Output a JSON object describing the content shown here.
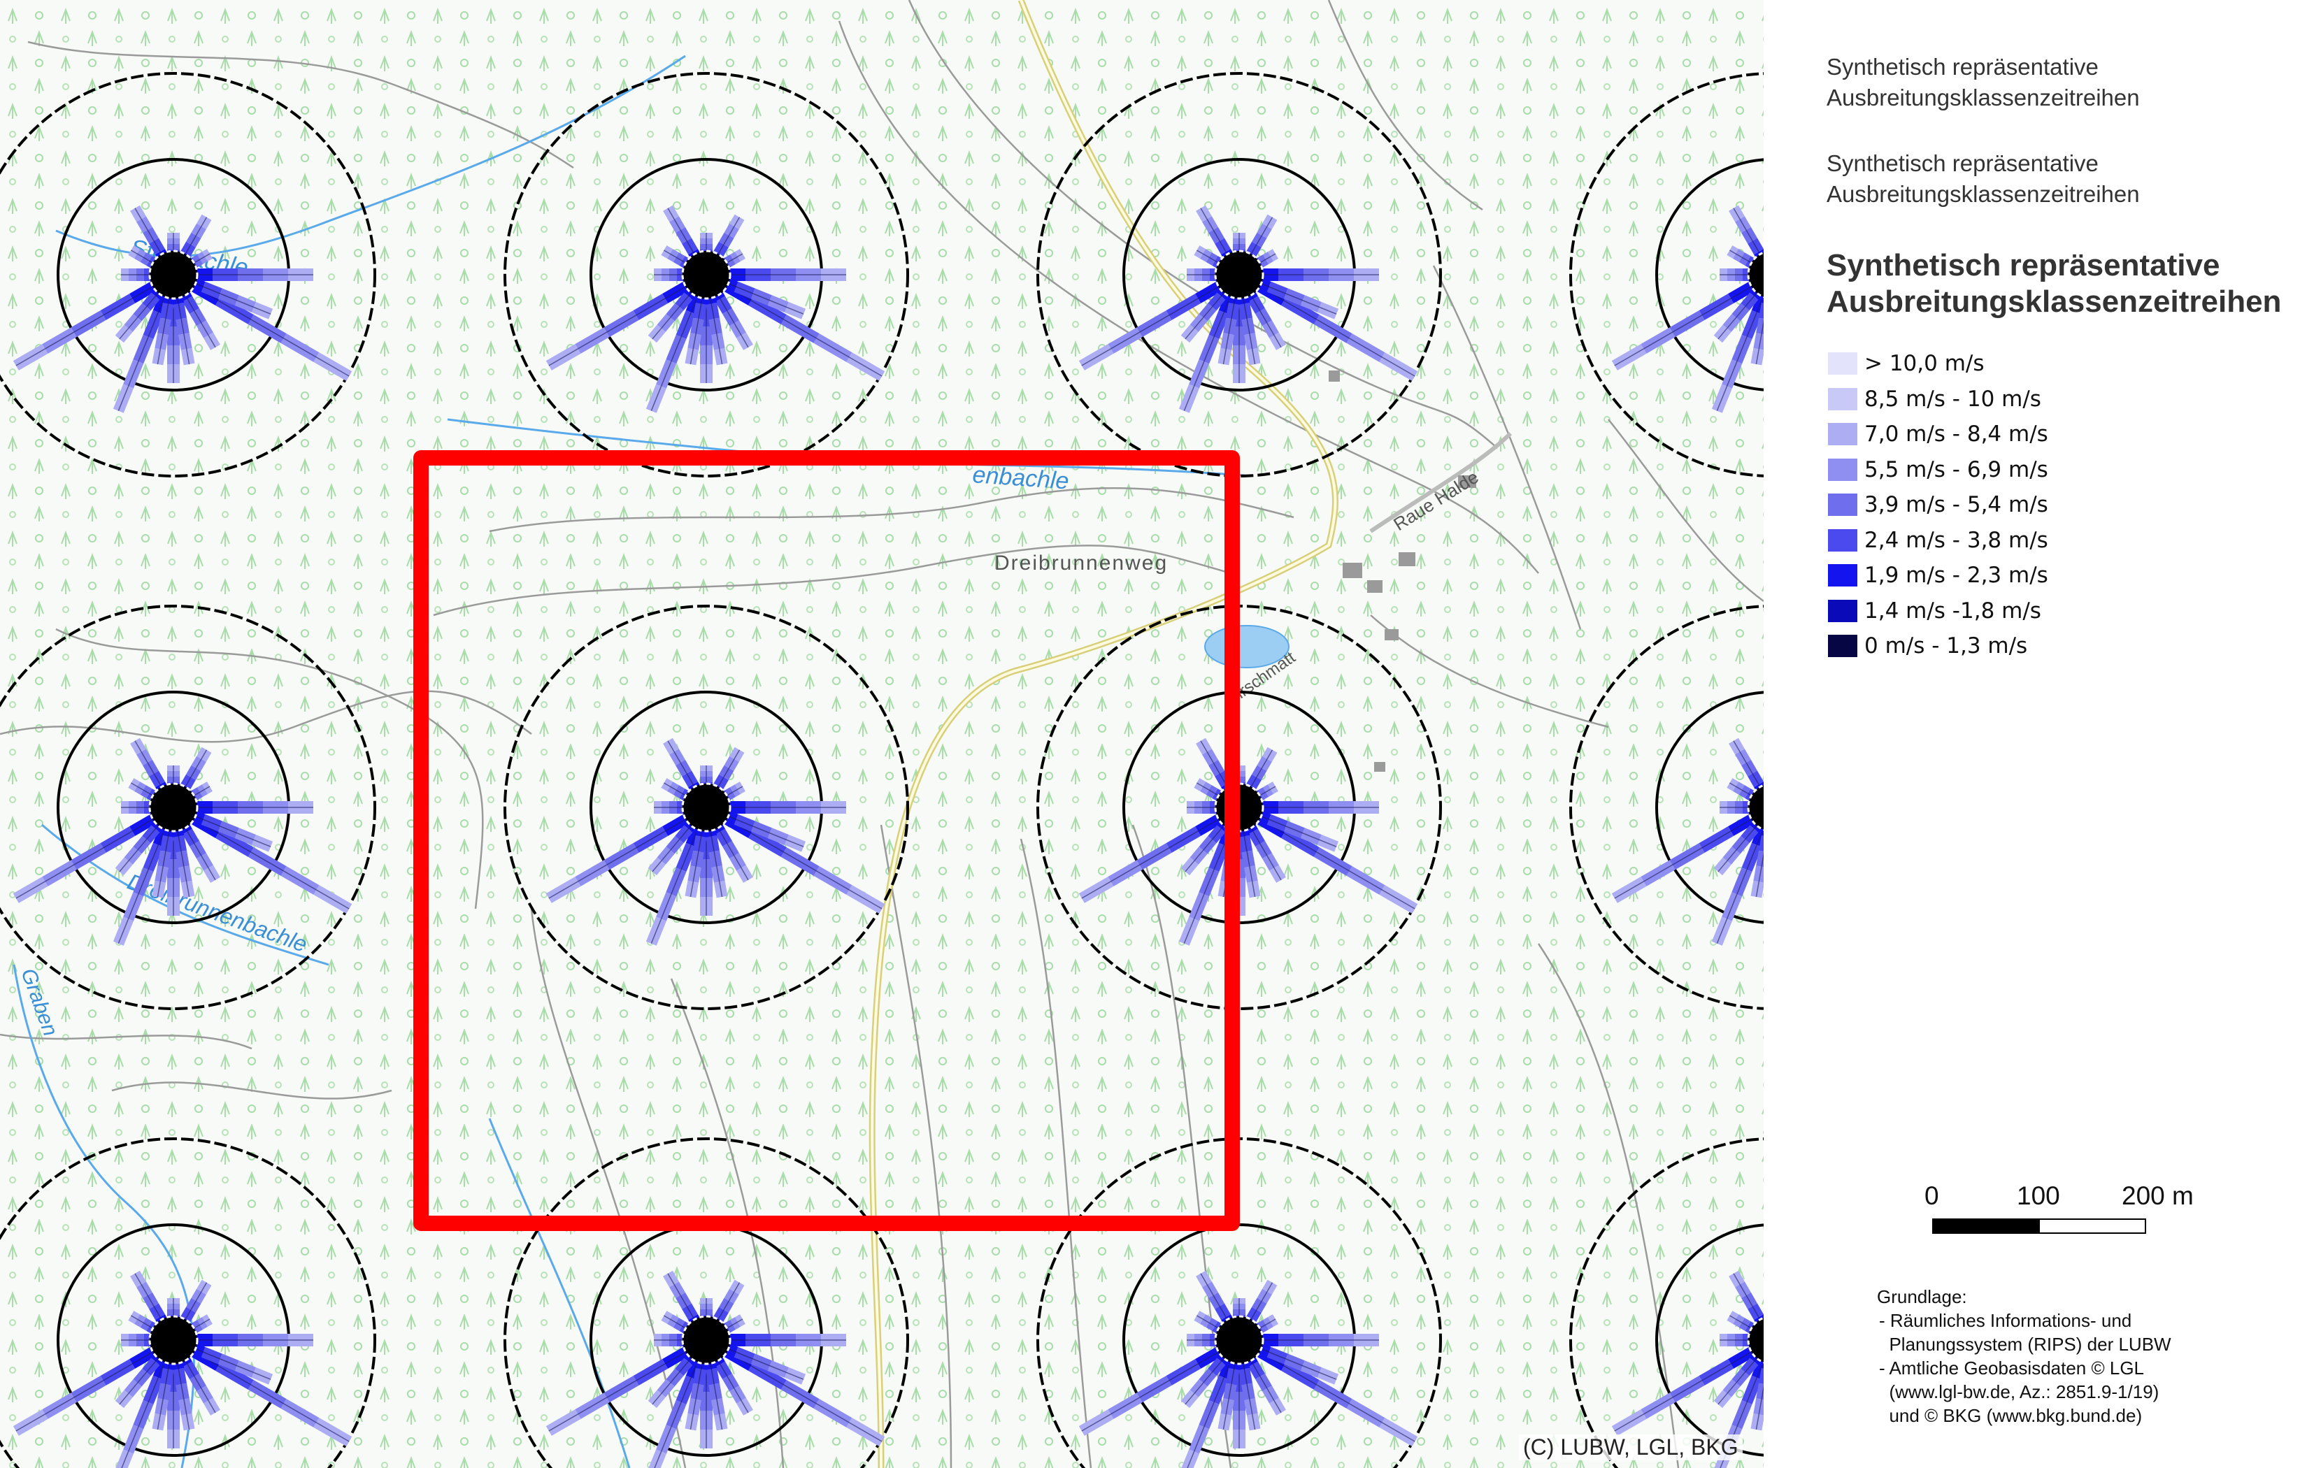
{
  "legend": {
    "title_small_1": [
      "Synthetisch repräsentative",
      "Ausbreitungsklassenzeitreihen"
    ],
    "title_small_2": [
      "Synthetisch repräsentative",
      "Ausbreitungsklassenzeitreihen"
    ],
    "title_bold": [
      "Synthetisch repräsentative",
      "Ausbreitungsklassenzeitreihen"
    ],
    "classes": [
      {
        "label": "> 10,0 m/s",
        "color": "#e3e3fb"
      },
      {
        "label": "8,5 m/s - 10 m/s",
        "color": "#c9c9f7"
      },
      {
        "label": "7,0 m/s - 8,4 m/s",
        "color": "#adadf4"
      },
      {
        "label": "5,5 m/s - 6,9 m/s",
        "color": "#8f8ff1"
      },
      {
        "label": "3,9 m/s - 5,4 m/s",
        "color": "#6f6fee"
      },
      {
        "label": "2,4 m/s - 3,8 m/s",
        "color": "#4a4aee"
      },
      {
        "label": "1,9 m/s - 2,3 m/s",
        "color": "#1414ee"
      },
      {
        "label": "1,4 m/s -1,8 m/s",
        "color": "#0a0ab8"
      },
      {
        "label": "0 m/s - 1,3 m/s",
        "color": "#060645"
      }
    ]
  },
  "scale_bar": {
    "labels": [
      "0",
      "100",
      "200 m"
    ]
  },
  "sources": {
    "heading": "Grundlage:",
    "lines": [
      "- Räumliches Informations- und",
      "  Planungssystem (RIPS) der LUBW",
      "- Amtliche Geobasisdaten © LGL",
      "  (www.lgl-bw.de, Az.: 2851.9-1/19)",
      "  und © BKG (www.bkg.bund.de)"
    ]
  },
  "copyright": "(C) LUBW, LGL, BKG",
  "map_labels": [
    {
      "text": "Dreibrunnenweg"
    },
    {
      "text": "Raue Halde"
    },
    {
      "text": "Stegbachle"
    },
    {
      "text": "enbachle"
    },
    {
      "text": "Dreibrunnenbachle"
    },
    {
      "text": "Graben"
    },
    {
      "text": "Hirschmatt"
    }
  ],
  "colors": {
    "frame": "#888888",
    "highlight": "#ff0000",
    "ring": "#000000",
    "water": "#5aa9ea",
    "road": "#d8cf7a",
    "contour": "#9a9a9a",
    "forest_symbol": "#a8dca8"
  }
}
